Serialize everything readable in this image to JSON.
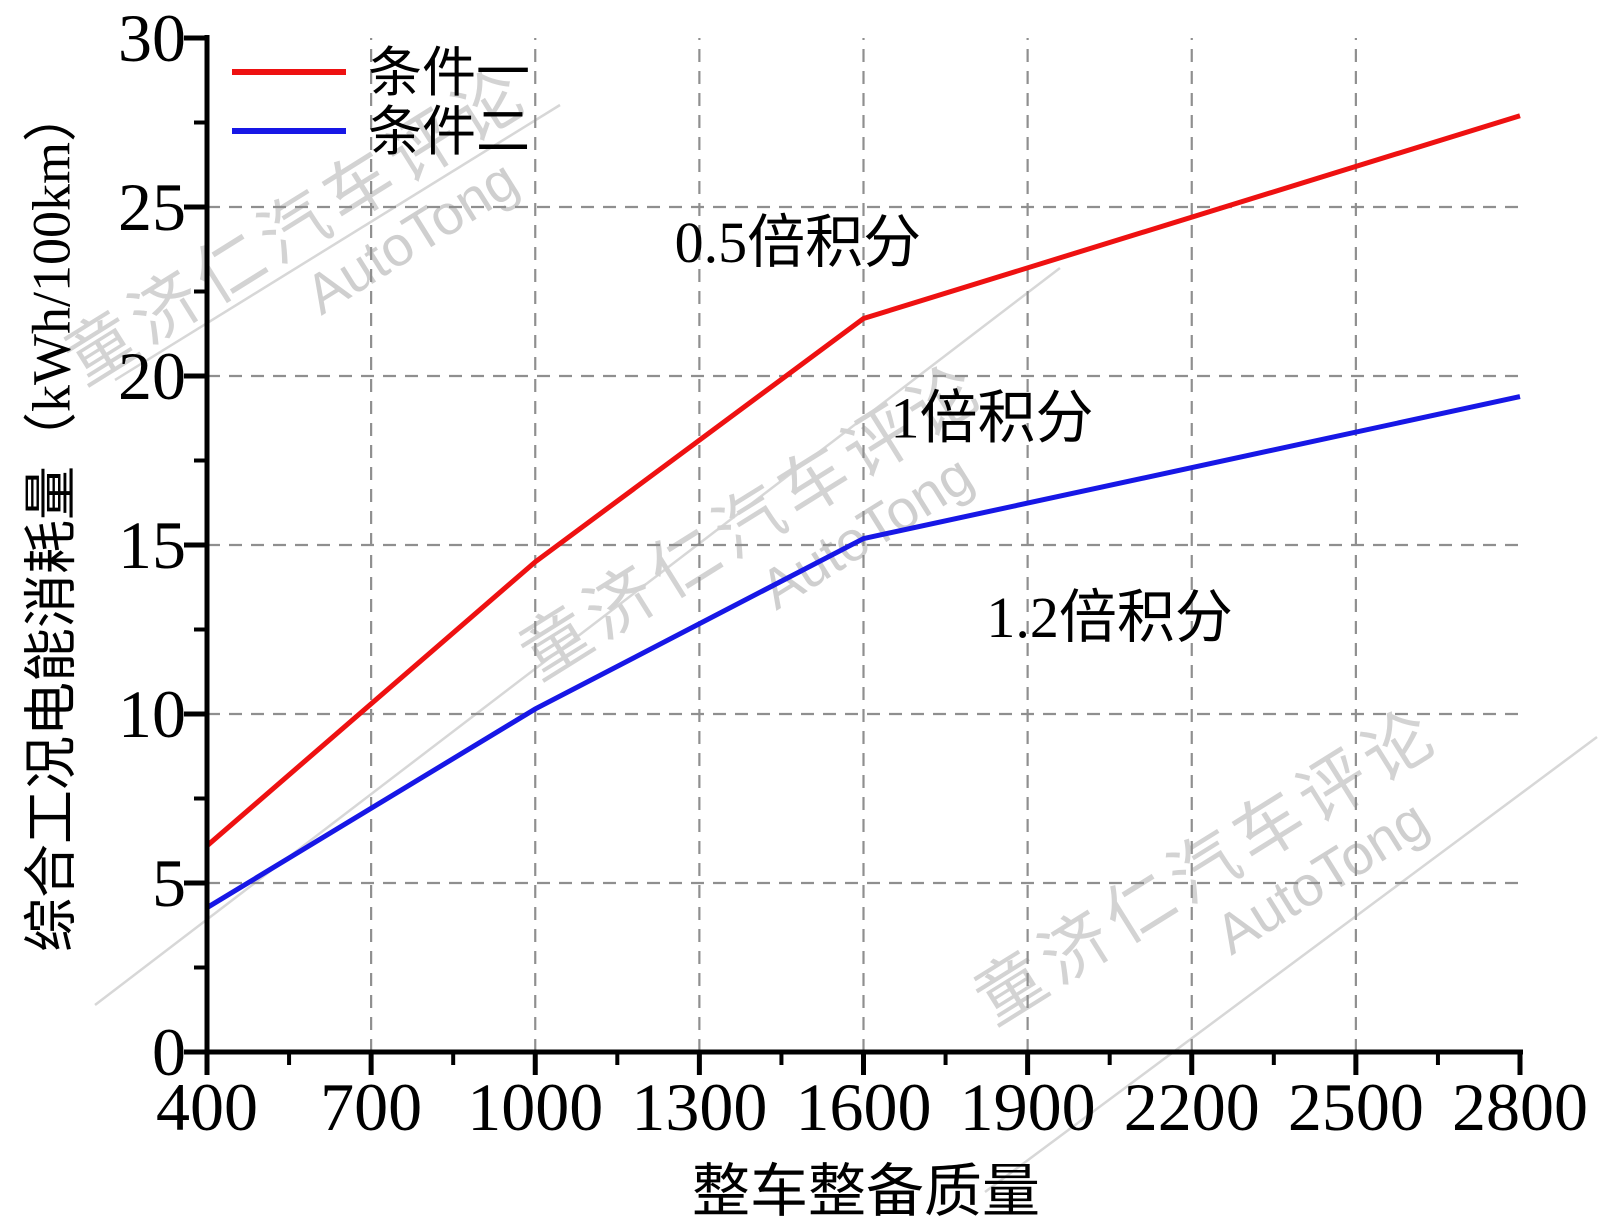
{
  "chart_data": {
    "type": "line",
    "title": "",
    "xlabel": "整车整备质量",
    "ylabel": "综合工况电能消耗量（kWh/100km）",
    "xlim": [
      400,
      2800
    ],
    "ylim": [
      0,
      30
    ],
    "x_major_ticks": [
      400,
      700,
      1000,
      1300,
      1600,
      1900,
      2200,
      2500,
      2800
    ],
    "x_minor_ticks": [
      550,
      850,
      1150,
      1450,
      1750,
      2050,
      2350,
      2650
    ],
    "y_major_ticks": [
      0,
      5,
      10,
      15,
      20,
      25,
      30
    ],
    "y_minor_ticks": [
      2.5,
      7.5,
      12.5,
      17.5,
      22.5,
      27.5
    ],
    "grid_x": [
      700,
      1000,
      1300,
      1600,
      1900,
      2200,
      2500
    ],
    "grid_y": [
      5,
      10,
      15,
      20,
      25
    ],
    "grid_on": true,
    "legend_position": "top-left",
    "series": [
      {
        "name": "条件一",
        "color": "#ee1111",
        "points": [
          [
            400,
            6.1
          ],
          [
            1000,
            14.5
          ],
          [
            1600,
            21.7
          ],
          [
            2800,
            27.7
          ]
        ]
      },
      {
        "name": "条件二",
        "color": "#1717e6",
        "points": [
          [
            400,
            4.27
          ],
          [
            1000,
            10.15
          ],
          [
            1600,
            15.19
          ],
          [
            2800,
            19.39
          ]
        ]
      }
    ],
    "annotations": [
      {
        "text": "0.5倍积分",
        "x": 1480,
        "y": 24.0
      },
      {
        "text": "1倍积分",
        "x": 1835,
        "y": 18.8
      },
      {
        "text": "1.2倍积分",
        "x": 2050,
        "y": 12.9
      }
    ]
  },
  "watermark": {
    "cn": "童济仁汽车评论",
    "en": "AutoTong"
  },
  "colors": {
    "axis": "#000000",
    "grid": "#8f8f8f",
    "text": "#000000",
    "watermark": "#d3d3d3"
  }
}
